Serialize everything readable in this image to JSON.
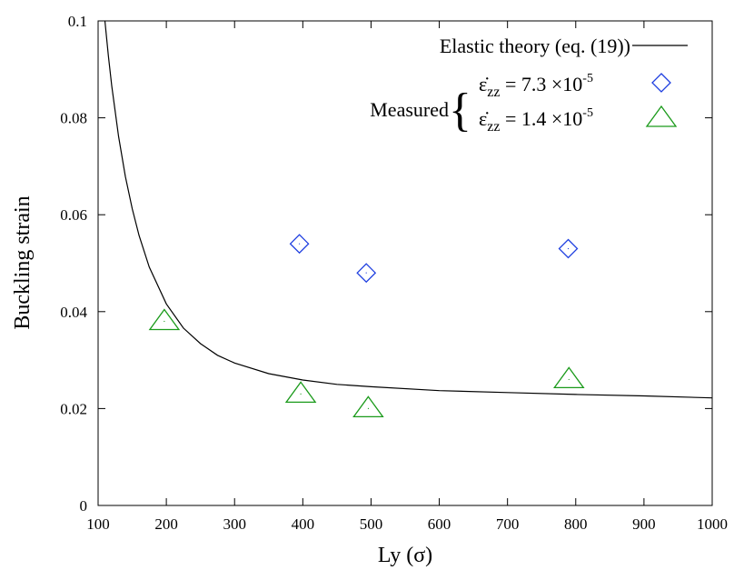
{
  "chart_data": {
    "type": "scatter",
    "xlabel": "Ly (σ)",
    "ylabel": "Buckling strain",
    "xlim": [
      100,
      1000
    ],
    "ylim": [
      0,
      0.1
    ],
    "x_ticks": [
      "100",
      "200",
      "300",
      "400",
      "500",
      "600",
      "700",
      "800",
      "900",
      "1000"
    ],
    "y_ticks": [
      "0",
      "0.02",
      "0.04",
      "0.06",
      "0.08",
      "0.1"
    ],
    "grid": false,
    "legend_position": "top-right",
    "theory_curve": {
      "name": "Elastic theory (eq. (19))",
      "color": "#000000",
      "type": "line",
      "x": [
        110,
        115,
        120,
        130,
        140,
        150,
        160,
        175,
        200,
        225,
        250,
        275,
        300,
        350,
        400,
        450,
        500,
        600,
        700,
        800,
        900,
        1000
      ],
      "y": [
        0.1,
        0.0928,
        0.0866,
        0.0762,
        0.0679,
        0.0612,
        0.0557,
        0.0492,
        0.0416,
        0.0366,
        0.0334,
        0.031,
        0.0294,
        0.0272,
        0.0259,
        0.025,
        0.0245,
        0.0237,
        0.0233,
        0.0229,
        0.0226,
        0.0222
      ]
    },
    "legend_group_label": "Measured",
    "series": [
      {
        "name": "ε̇zz = 7.3 ×10-5",
        "symbol_label": "ε̇",
        "subscript": "zz",
        "value_text": " = 7.3 ×10",
        "exponent": "-5",
        "marker": "diamond",
        "color": "#1f3fe0",
        "x": [
          395,
          493,
          789
        ],
        "y": [
          0.054,
          0.048,
          0.053
        ]
      },
      {
        "name": "ε̇zz = 1.4 ×10-5",
        "symbol_label": "ε̇",
        "subscript": "zz",
        "value_text": " = 1.4 ×10",
        "exponent": "-5",
        "marker": "triangle",
        "color": "#1a9a1a",
        "x": [
          197,
          397,
          496,
          790
        ],
        "y": [
          0.038,
          0.023,
          0.02,
          0.026
        ]
      }
    ]
  }
}
